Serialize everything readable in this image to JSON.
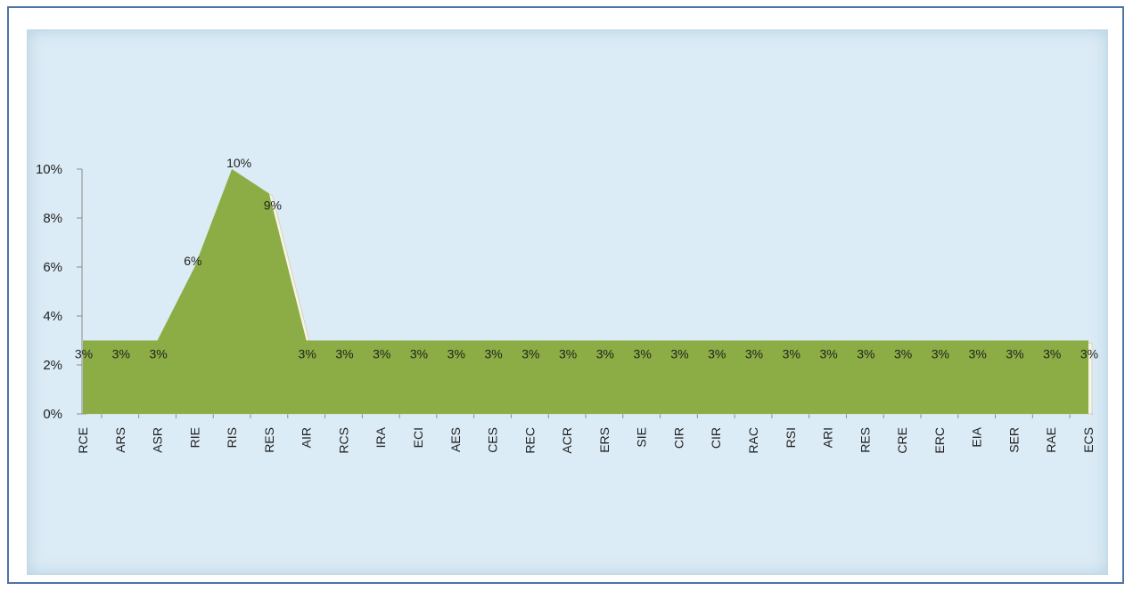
{
  "chart_data": {
    "type": "area",
    "categories": [
      "RCE",
      "ARS",
      "ASR",
      "RIE",
      "RIS",
      "RES",
      "AIR",
      "RCS",
      "IRA",
      "ECI",
      "AES",
      "CES",
      "REC",
      "ACR",
      "ERS",
      "SIE",
      "CIR",
      "CIR",
      "RAC",
      "RSI",
      "ARI",
      "RES",
      "CRE",
      "ERC",
      "EIA",
      "SER",
      "RAE",
      "ECS"
    ],
    "values": [
      3,
      3,
      3,
      6,
      10,
      9,
      3,
      3,
      3,
      3,
      3,
      3,
      3,
      3,
      3,
      3,
      3,
      3,
      3,
      3,
      3,
      3,
      3,
      3,
      3,
      3,
      3,
      3
    ],
    "data_labels": [
      "3%",
      "3%",
      "3%",
      "6%",
      "10%",
      "9%",
      "3%",
      "3%",
      "3%",
      "3%",
      "3%",
      "3%",
      "3%",
      "3%",
      "3%",
      "3%",
      "3%",
      "3%",
      "3%",
      "3%",
      "3%",
      "3%",
      "3%",
      "3%",
      "3%",
      "3%",
      "3%",
      "3%"
    ],
    "y_ticks": [
      "0%",
      "2%",
      "4%",
      "6%",
      "8%",
      "10%"
    ],
    "ylim": [
      0,
      10
    ],
    "title": "",
    "xlabel": "",
    "ylabel": "",
    "grid": false,
    "legend": "none",
    "colors": {
      "area": "#8cad45",
      "background": "#dcecf6",
      "frame": "#4f74a8"
    }
  }
}
